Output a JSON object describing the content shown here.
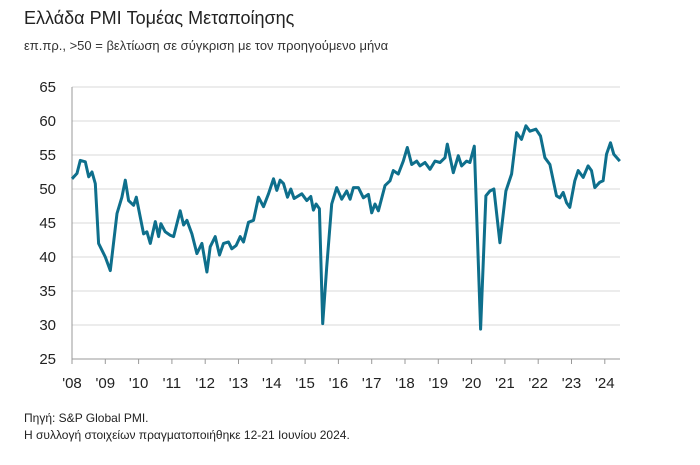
{
  "title": "Ελλάδα PMI Τομέας Μεταποίησης",
  "subtitle": "επ.πρ., >50 = βελτίωση σε σύγκριση με τον προηγούμενο μήνα",
  "footer": {
    "source": "Πηγή: S&P Global PMI.",
    "note": "Η συλλογή στοιχείων πραγματοποιήθηκε 12-21 Ιουνίου 2024."
  },
  "colors": {
    "line": "#0e6f8c",
    "grid": "#d9d9d9",
    "axis": "#999999"
  },
  "chart_data": {
    "type": "line",
    "title": "Ελλάδα PMI Τομέας Μεταποίησης",
    "xlabel": "",
    "ylabel": "",
    "ylim": [
      25,
      65
    ],
    "yticks": [
      "25",
      "30",
      "35",
      "40",
      "45",
      "50",
      "55",
      "60",
      "65"
    ],
    "xlim": [
      2008,
      2024.45
    ],
    "xticks": [
      "'08",
      "'09",
      "'10",
      "'11",
      "'12",
      "'13",
      "'14",
      "'15",
      "'16",
      "'17",
      "'18",
      "'19",
      "'20",
      "'21",
      "'22",
      "'23",
      "'24"
    ],
    "grid": true,
    "series": [
      {
        "name": "Ελλάδα PMI Τομέας Μεταποίησης",
        "points": [
          [
            2008.0,
            51.5
          ],
          [
            2008.15,
            52.3
          ],
          [
            2008.25,
            54.2
          ],
          [
            2008.4,
            54.0
          ],
          [
            2008.5,
            51.8
          ],
          [
            2008.6,
            52.5
          ],
          [
            2008.7,
            50.8
          ],
          [
            2008.8,
            42.0
          ],
          [
            2009.0,
            40.0
          ],
          [
            2009.15,
            38.0
          ],
          [
            2009.35,
            46.4
          ],
          [
            2009.5,
            48.8
          ],
          [
            2009.6,
            51.3
          ],
          [
            2009.7,
            48.3
          ],
          [
            2009.85,
            47.6
          ],
          [
            2009.93,
            48.8
          ],
          [
            2010.15,
            43.4
          ],
          [
            2010.25,
            43.7
          ],
          [
            2010.35,
            42.0
          ],
          [
            2010.5,
            45.2
          ],
          [
            2010.6,
            43.0
          ],
          [
            2010.67,
            44.9
          ],
          [
            2010.8,
            43.7
          ],
          [
            2010.95,
            43.2
          ],
          [
            2011.05,
            43.0
          ],
          [
            2011.25,
            46.8
          ],
          [
            2011.35,
            44.7
          ],
          [
            2011.45,
            45.4
          ],
          [
            2011.6,
            43.4
          ],
          [
            2011.75,
            40.5
          ],
          [
            2011.9,
            42.0
          ],
          [
            2012.05,
            37.8
          ],
          [
            2012.15,
            41.5
          ],
          [
            2012.3,
            43.0
          ],
          [
            2012.43,
            40.3
          ],
          [
            2012.55,
            42.0
          ],
          [
            2012.7,
            42.2
          ],
          [
            2012.8,
            41.2
          ],
          [
            2012.93,
            41.7
          ],
          [
            2013.05,
            43.0
          ],
          [
            2013.15,
            42.2
          ],
          [
            2013.3,
            45.1
          ],
          [
            2013.45,
            45.4
          ],
          [
            2013.6,
            48.8
          ],
          [
            2013.75,
            47.4
          ],
          [
            2013.9,
            49.3
          ],
          [
            2014.05,
            51.5
          ],
          [
            2014.15,
            49.8
          ],
          [
            2014.25,
            51.3
          ],
          [
            2014.35,
            50.8
          ],
          [
            2014.47,
            48.8
          ],
          [
            2014.57,
            50.0
          ],
          [
            2014.67,
            48.6
          ],
          [
            2014.9,
            49.3
          ],
          [
            2015.05,
            48.3
          ],
          [
            2015.17,
            48.9
          ],
          [
            2015.25,
            46.9
          ],
          [
            2015.33,
            47.8
          ],
          [
            2015.43,
            47.1
          ],
          [
            2015.53,
            30.2
          ],
          [
            2015.65,
            38.5
          ],
          [
            2015.8,
            47.8
          ],
          [
            2015.95,
            50.2
          ],
          [
            2016.1,
            48.5
          ],
          [
            2016.25,
            49.7
          ],
          [
            2016.35,
            48.5
          ],
          [
            2016.45,
            50.2
          ],
          [
            2016.6,
            50.2
          ],
          [
            2016.75,
            48.7
          ],
          [
            2016.9,
            49.2
          ],
          [
            2017.0,
            46.5
          ],
          [
            2017.1,
            47.8
          ],
          [
            2017.2,
            46.8
          ],
          [
            2017.4,
            50.5
          ],
          [
            2017.55,
            51.2
          ],
          [
            2017.65,
            52.7
          ],
          [
            2017.8,
            52.2
          ],
          [
            2017.95,
            54.1
          ],
          [
            2018.07,
            56.1
          ],
          [
            2018.2,
            53.6
          ],
          [
            2018.35,
            54.1
          ],
          [
            2018.45,
            53.4
          ],
          [
            2018.6,
            53.9
          ],
          [
            2018.75,
            52.9
          ],
          [
            2018.9,
            54.1
          ],
          [
            2019.05,
            53.9
          ],
          [
            2019.2,
            54.6
          ],
          [
            2019.27,
            56.6
          ],
          [
            2019.45,
            52.4
          ],
          [
            2019.6,
            54.9
          ],
          [
            2019.7,
            53.4
          ],
          [
            2019.85,
            54.1
          ],
          [
            2019.95,
            53.9
          ],
          [
            2020.08,
            56.3
          ],
          [
            2020.27,
            29.4
          ],
          [
            2020.43,
            49.0
          ],
          [
            2020.55,
            49.7
          ],
          [
            2020.67,
            50.0
          ],
          [
            2020.85,
            42.1
          ],
          [
            2021.03,
            49.7
          ],
          [
            2021.2,
            52.2
          ],
          [
            2021.35,
            58.3
          ],
          [
            2021.5,
            57.3
          ],
          [
            2021.63,
            59.3
          ],
          [
            2021.75,
            58.5
          ],
          [
            2021.93,
            58.8
          ],
          [
            2022.07,
            57.8
          ],
          [
            2022.2,
            54.6
          ],
          [
            2022.35,
            53.6
          ],
          [
            2022.55,
            49.0
          ],
          [
            2022.65,
            48.7
          ],
          [
            2022.75,
            49.5
          ],
          [
            2022.85,
            48.0
          ],
          [
            2022.95,
            47.3
          ],
          [
            2023.1,
            51.2
          ],
          [
            2023.2,
            52.7
          ],
          [
            2023.35,
            51.7
          ],
          [
            2023.5,
            53.4
          ],
          [
            2023.6,
            52.7
          ],
          [
            2023.7,
            50.2
          ],
          [
            2023.85,
            51.0
          ],
          [
            2023.95,
            51.2
          ],
          [
            2024.05,
            55.1
          ],
          [
            2024.17,
            56.8
          ],
          [
            2024.27,
            55.1
          ],
          [
            2024.45,
            54.1
          ]
        ]
      }
    ]
  }
}
